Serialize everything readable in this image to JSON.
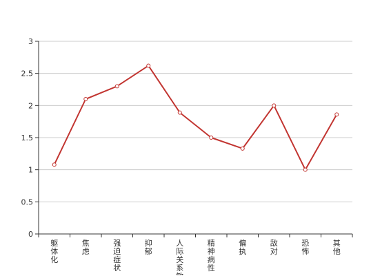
{
  "chart_data": {
    "type": "line",
    "title": "",
    "xlabel": "",
    "ylabel": "",
    "categories": [
      "躯体化",
      "焦虑",
      "强迫症状",
      "抑郁",
      "人际关系敏感",
      "精神病性",
      "偏执",
      "敌对",
      "恐怖",
      "其他"
    ],
    "series": [
      {
        "values": [
          1.08,
          2.1,
          2.3,
          2.62,
          1.89,
          1.5,
          1.33,
          2.0,
          1.0,
          1.86
        ]
      }
    ],
    "ylim": [
      0,
      3
    ],
    "yticks": [
      "0",
      "0.5",
      "1",
      "1.5",
      "2",
      "2.5",
      "3"
    ],
    "grid": true,
    "legend": "none",
    "colors": {
      "line": "#c23531",
      "axis": "#333333",
      "grid": "#cccccc"
    }
  }
}
